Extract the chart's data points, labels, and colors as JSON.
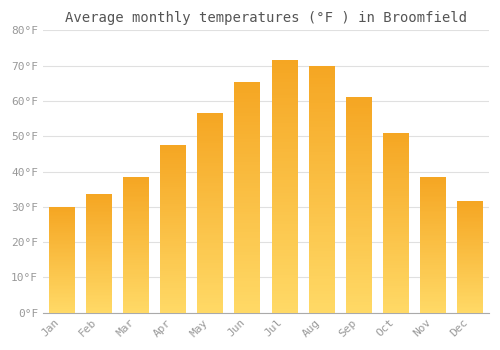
{
  "months": [
    "Jan",
    "Feb",
    "Mar",
    "Apr",
    "May",
    "Jun",
    "Jul",
    "Aug",
    "Sep",
    "Oct",
    "Nov",
    "Dec"
  ],
  "values": [
    30,
    33.5,
    38.5,
    47.5,
    56.5,
    65.5,
    71.5,
    70,
    61,
    51,
    38.5,
    31.5
  ],
  "title": "Average monthly temperatures (°F ) in Broomfield",
  "ylabel_ticks": [
    "0°F",
    "10°F",
    "20°F",
    "30°F",
    "40°F",
    "50°F",
    "60°F",
    "70°F",
    "80°F"
  ],
  "ylim": [
    0,
    80
  ],
  "yticks": [
    0,
    10,
    20,
    30,
    40,
    50,
    60,
    70,
    80
  ],
  "bar_color_top": "#F5A623",
  "bar_color_bottom": "#FFD966",
  "background_color": "#FFFFFF",
  "grid_color": "#E0E0E0",
  "title_fontsize": 10,
  "tick_fontsize": 8,
  "tick_color": "#999999",
  "title_color": "#555555"
}
